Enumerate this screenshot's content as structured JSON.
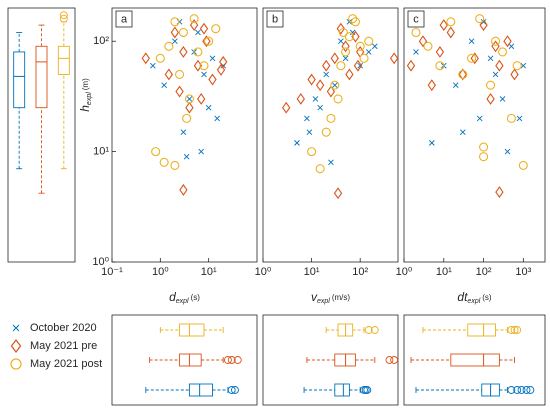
{
  "chart_data": [
    {
      "type": "box",
      "orientation": "vertical",
      "log_y": true,
      "ylim": [
        1,
        200
      ],
      "boxes": [
        {
          "color": "#0072bd",
          "min": 7,
          "q1": 25,
          "median": 48,
          "q3": 80,
          "max": 120,
          "outliers": []
        },
        {
          "color": "#d95319",
          "min": 4.2,
          "q1": 25,
          "median": 65,
          "q3": 90,
          "max": 140,
          "outliers": []
        },
        {
          "color": "#edb120",
          "min": 7,
          "q1": 50,
          "median": 70,
          "q3": 90,
          "max": 150,
          "outliers": [
            160,
            172
          ]
        }
      ]
    },
    {
      "type": "scatter",
      "label": "a",
      "log_x": true,
      "log_y": true,
      "xlim": [
        0.1,
        100
      ],
      "ylim": [
        1,
        200
      ],
      "xticks": [
        {
          "value": 0.1,
          "label": "10⁻¹"
        },
        {
          "value": 1,
          "label": "10⁰"
        },
        {
          "value": 10,
          "label": "10¹"
        }
      ],
      "yticks": [
        {
          "value": 1,
          "label": "10⁰"
        },
        {
          "value": 10,
          "label": "10¹"
        },
        {
          "value": 100,
          "label": "10²"
        }
      ],
      "xlabel": {
        "main": "d",
        "sub": "expl",
        "unit": "(s)"
      },
      "ylabel": {
        "main": "h",
        "sub": "expl",
        "unit": "(m)"
      },
      "series": [
        {
          "name": "October 2020",
          "color": "#0072bd",
          "marker": "x",
          "x": [
            0.7,
            1.2,
            2,
            3,
            4,
            5,
            6,
            8,
            10,
            12,
            15,
            2.5,
            7,
            20,
            3.5
          ],
          "y": [
            60,
            40,
            100,
            15,
            30,
            80,
            120,
            50,
            25,
            70,
            20,
            150,
            10,
            60,
            9
          ]
        },
        {
          "name": "May 2021 pre",
          "color": "#d95319",
          "marker": "diamond",
          "x": [
            0.5,
            1.5,
            2,
            2.5,
            3,
            4,
            5,
            6,
            7,
            9,
            12,
            18,
            3,
            8,
            20
          ],
          "y": [
            70,
            50,
            120,
            35,
            80,
            25,
            140,
            60,
            30,
            100,
            45,
            55,
            4.5,
            130,
            65
          ]
        },
        {
          "name": "May 2021 post",
          "color": "#edb120",
          "marker": "circle",
          "x": [
            0.8,
            1,
            1.5,
            2,
            2.5,
            3,
            4,
            5,
            6,
            8,
            10,
            1.2,
            3.5,
            14,
            2
          ],
          "y": [
            10,
            70,
            90,
            150,
            50,
            120,
            30,
            160,
            80,
            60,
            100,
            8,
            20,
            130,
            7.5
          ]
        }
      ]
    },
    {
      "type": "scatter",
      "label": "b",
      "log_x": true,
      "log_y": true,
      "xlim": [
        1,
        600
      ],
      "ylim": [
        1,
        200
      ],
      "xticks": [
        {
          "value": 1,
          "label": "10⁰"
        },
        {
          "value": 10,
          "label": "10¹"
        },
        {
          "value": 100,
          "label": "10²"
        }
      ],
      "xlabel": {
        "main": "v",
        "sub": "expl",
        "unit": "(m/s)"
      },
      "series": [
        {
          "color": "#0072bd",
          "marker": "x",
          "x": [
            5,
            8,
            12,
            20,
            30,
            40,
            50,
            70,
            100,
            150,
            25,
            60,
            200,
            15,
            9
          ],
          "y": [
            12,
            20,
            30,
            50,
            40,
            100,
            70,
            120,
            60,
            80,
            8,
            150,
            90,
            25,
            15
          ]
        },
        {
          "color": "#d95319",
          "marker": "diamond",
          "x": [
            3,
            6,
            10,
            15,
            20,
            30,
            40,
            50,
            60,
            80,
            100,
            35,
            25,
            90,
            500
          ],
          "y": [
            25,
            30,
            45,
            40,
            60,
            70,
            130,
            90,
            50,
            110,
            80,
            4.2,
            35,
            60,
            70
          ]
        },
        {
          "color": "#edb120",
          "marker": "circle",
          "x": [
            10,
            15,
            20,
            25,
            30,
            40,
            50,
            60,
            80,
            100,
            120,
            35,
            70,
            150,
            45
          ],
          "y": [
            10,
            7,
            15,
            20,
            40,
            60,
            80,
            110,
            150,
            90,
            70,
            30,
            160,
            100,
            120
          ]
        }
      ]
    },
    {
      "type": "scatter",
      "label": "c",
      "log_x": true,
      "log_y": true,
      "xlim": [
        1,
        3500
      ],
      "ylim": [
        1,
        200
      ],
      "xticks": [
        {
          "value": 1,
          "label": "10⁰"
        },
        {
          "value": 10,
          "label": "10¹"
        },
        {
          "value": 100,
          "label": "10²"
        },
        {
          "value": 1000,
          "label": "10³"
        }
      ],
      "xlabel": {
        "main": "dt",
        "sub": "expl",
        "unit": "(s)"
      },
      "series": [
        {
          "color": "#0072bd",
          "marker": "x",
          "x": [
            2,
            5,
            10,
            20,
            50,
            80,
            100,
            150,
            200,
            300,
            500,
            800,
            1000,
            30,
            400
          ],
          "y": [
            80,
            12,
            60,
            40,
            100,
            20,
            150,
            70,
            50,
            30,
            90,
            20,
            60,
            15,
            10
          ]
        },
        {
          "color": "#d95319",
          "marker": "diamond",
          "x": [
            1.5,
            3,
            5,
            8,
            15,
            30,
            60,
            100,
            150,
            200,
            250,
            400,
            600,
            250,
            10
          ],
          "y": [
            60,
            100,
            40,
            80,
            120,
            50,
            70,
            140,
            30,
            90,
            60,
            100,
            50,
            4.3,
            140
          ]
        },
        {
          "color": "#edb120",
          "marker": "circle",
          "x": [
            2,
            4,
            8,
            15,
            30,
            50,
            80,
            100,
            150,
            200,
            300,
            500,
            700,
            100,
            1000
          ],
          "y": [
            120,
            90,
            60,
            150,
            50,
            70,
            160,
            11,
            40,
            100,
            80,
            20,
            60,
            9,
            7.5
          ]
        }
      ]
    },
    {
      "type": "box",
      "orientation": "horizontal",
      "log_x": true,
      "xlim": [
        0.1,
        100
      ],
      "boxes": [
        {
          "color": "#0072bd",
          "min": 0.5,
          "q1": 4,
          "median": 6.5,
          "q3": 12,
          "max": 25,
          "outliers": [
            30,
            35
          ]
        },
        {
          "color": "#d95319",
          "min": 0.6,
          "q1": 2.5,
          "median": 4,
          "q3": 7,
          "max": 20,
          "outliers": [
            25,
            30,
            40
          ]
        },
        {
          "color": "#edb120",
          "min": 1,
          "q1": 2.5,
          "median": 4,
          "q3": 8,
          "max": 20,
          "outliers": []
        }
      ]
    },
    {
      "type": "box",
      "orientation": "horizontal",
      "log_x": true,
      "xlim": [
        1,
        600
      ],
      "boxes": [
        {
          "color": "#0072bd",
          "min": 7,
          "q1": 30,
          "median": 45,
          "q3": 60,
          "max": 100,
          "outliers": [
            120,
            130,
            140
          ]
        },
        {
          "color": "#d95319",
          "min": 8,
          "q1": 30,
          "median": 50,
          "q3": 80,
          "max": 200,
          "outliers": [
            400,
            500
          ]
        },
        {
          "color": "#edb120",
          "min": 20,
          "q1": 35,
          "median": 50,
          "q3": 70,
          "max": 120,
          "outliers": [
            150,
            200
          ]
        }
      ]
    },
    {
      "type": "box",
      "orientation": "horizontal",
      "log_x": true,
      "xlim": [
        1,
        3500
      ],
      "boxes": [
        {
          "color": "#0072bd",
          "min": 2,
          "q1": 90,
          "median": 150,
          "q3": 250,
          "max": 400,
          "outliers": [
            500,
            700,
            900,
            1200,
            1500
          ]
        },
        {
          "color": "#d95319",
          "min": 1.5,
          "q1": 15,
          "median": 100,
          "q3": 250,
          "max": 600,
          "outliers": []
        },
        {
          "color": "#edb120",
          "min": 3,
          "q1": 40,
          "median": 100,
          "q3": 200,
          "max": 400,
          "outliers": [
            500,
            600,
            700
          ]
        }
      ]
    }
  ]
}
